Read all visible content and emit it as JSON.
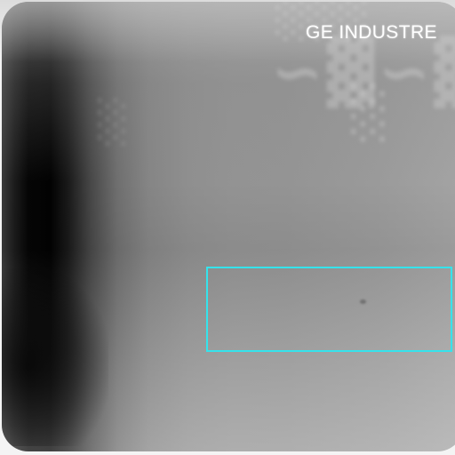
{
  "image": {
    "kind": "grayscale radiograph / inspection film",
    "overlay_label": "GE INDUSTRE",
    "roi_color": "#35e3ec"
  }
}
